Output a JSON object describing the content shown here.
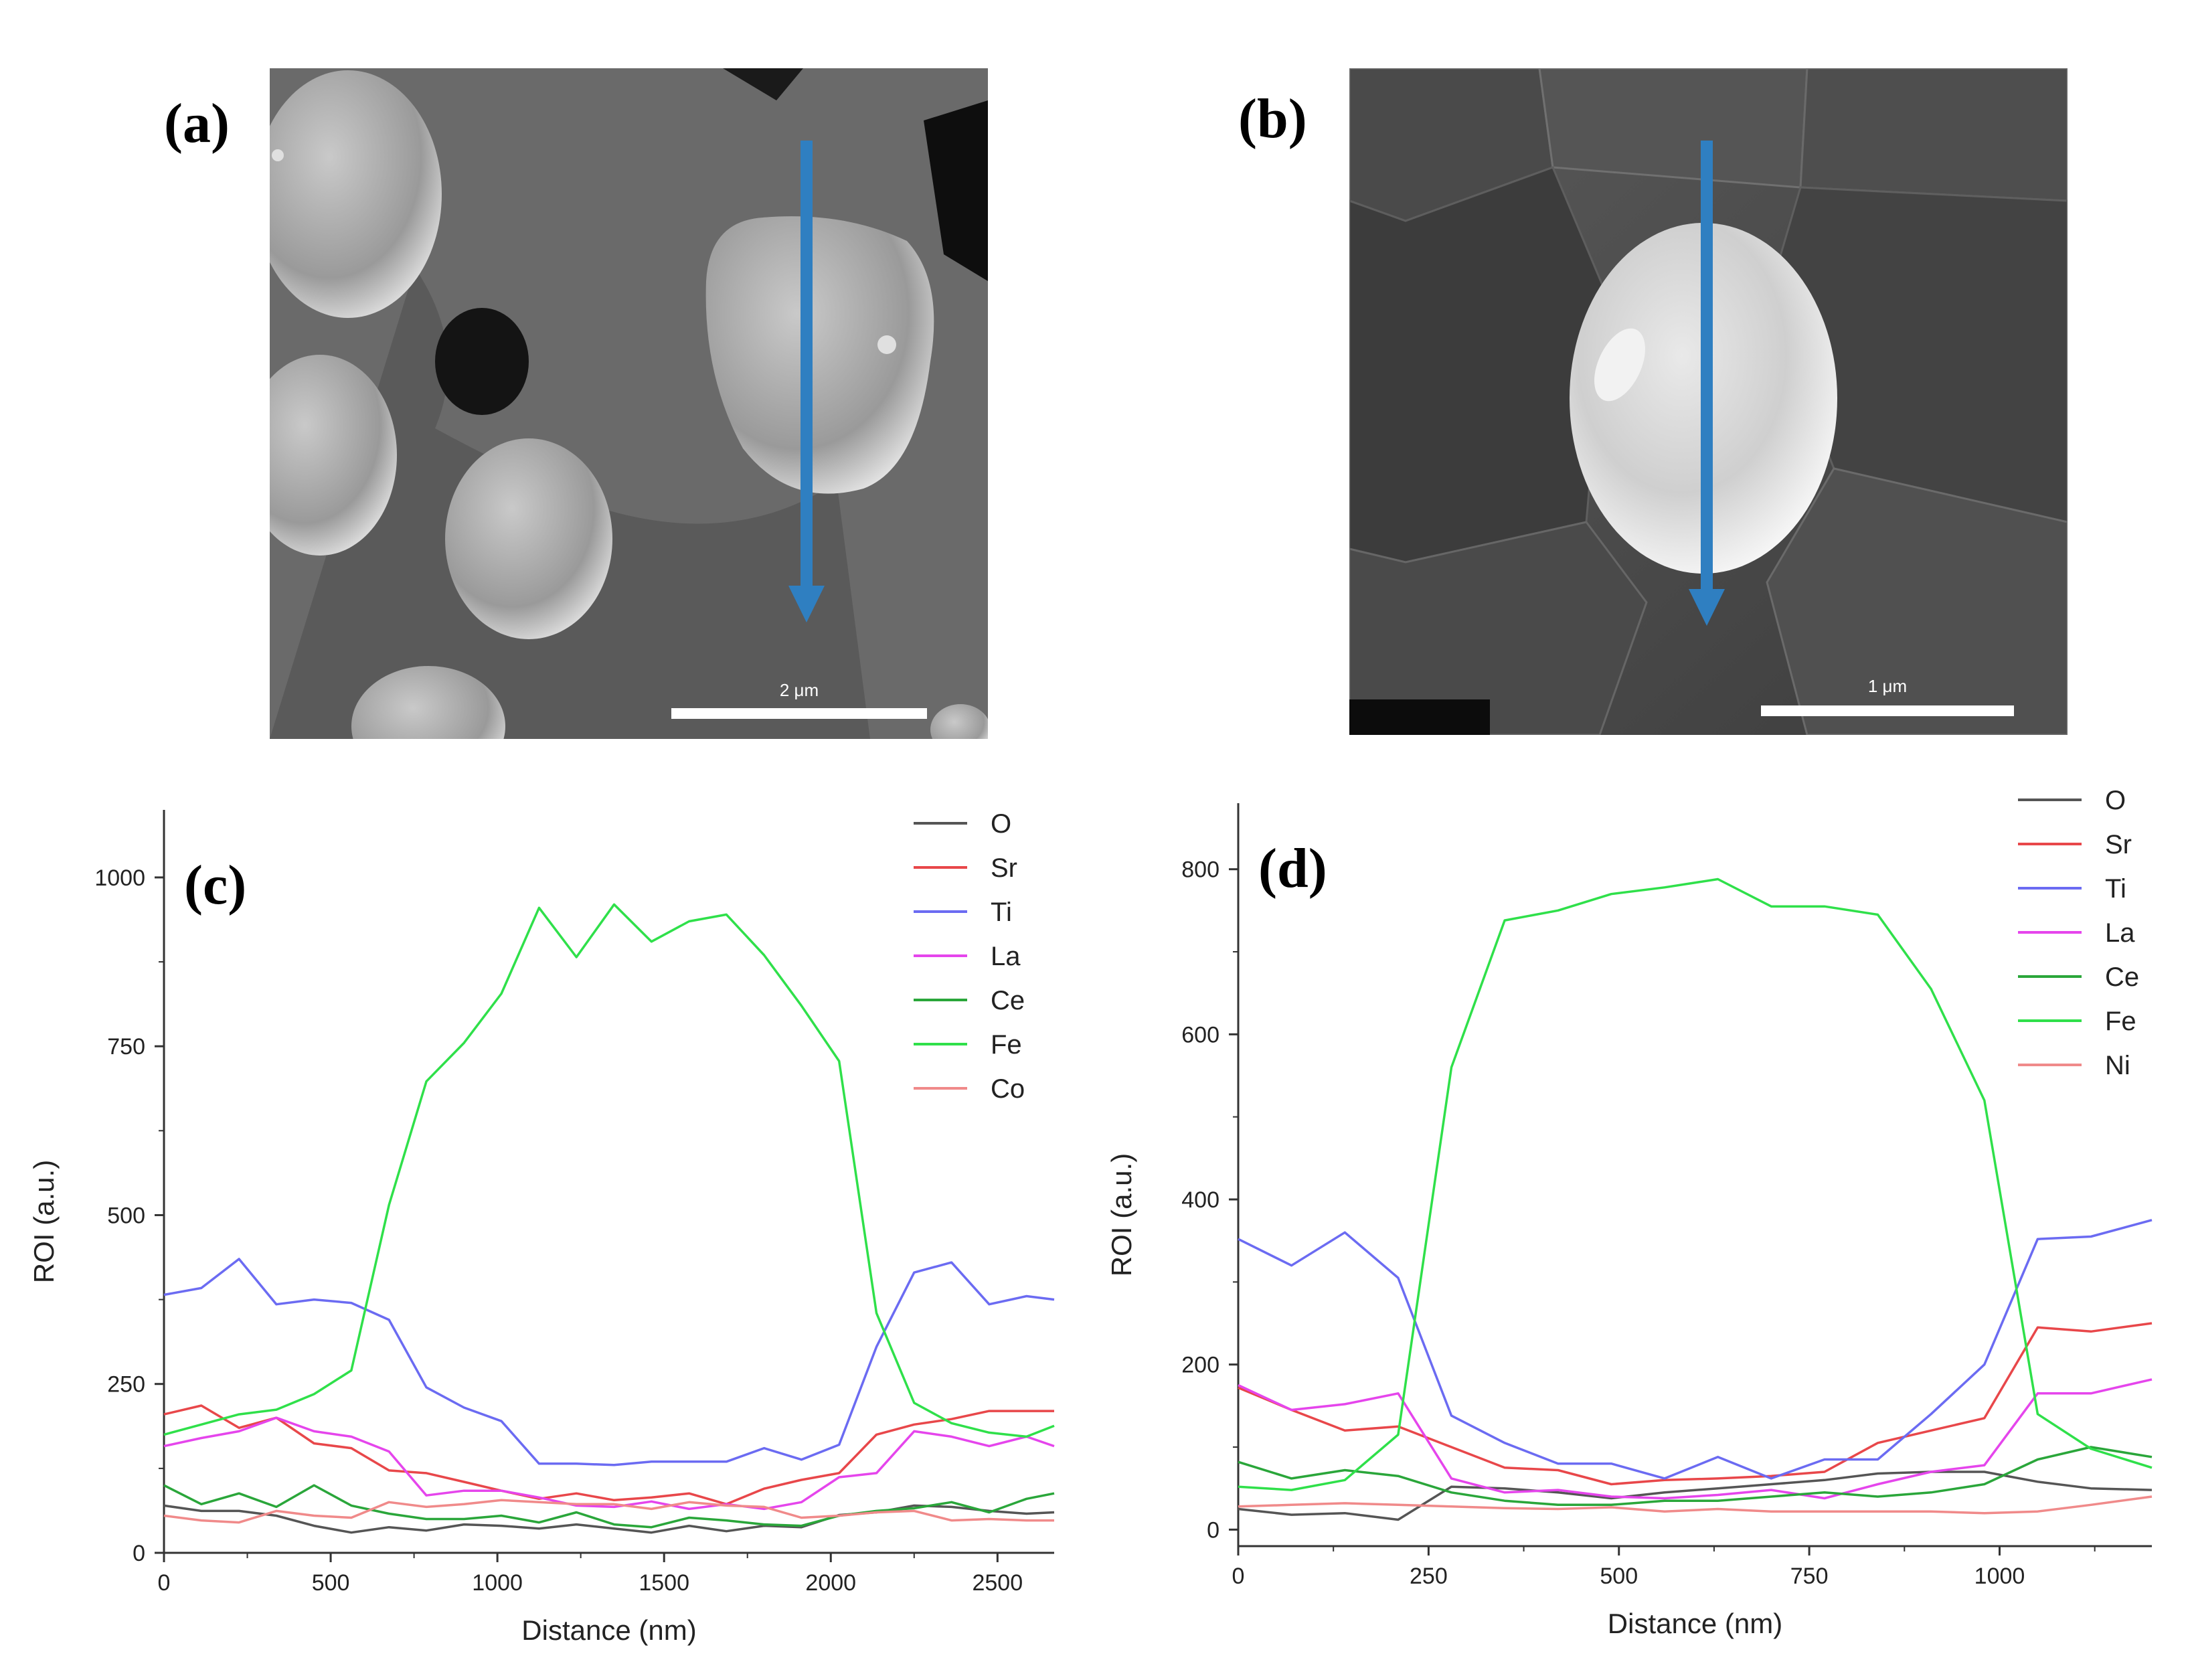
{
  "panels": {
    "a": {
      "label": "(a)",
      "scale_bar": "2 μm",
      "arrow_color": "#2f7fc1"
    },
    "b": {
      "label": "(b)",
      "scale_bar": "1 μm",
      "arrow_color": "#2f7fc1"
    },
    "c": {
      "label": "(c)"
    },
    "d": {
      "label": "(d)"
    }
  },
  "chart_data": [
    {
      "panel": "c",
      "type": "line",
      "xlabel": "Distance (nm)",
      "ylabel": "ROI (a.u.)",
      "xlim": [
        0,
        2670
      ],
      "ylim": [
        0,
        1100
      ],
      "xticks": [
        0,
        500,
        1000,
        1500,
        2000,
        2500
      ],
      "yticks": [
        0,
        250,
        500,
        750,
        1000
      ],
      "legend_position": "top-right",
      "series": [
        {
          "name": "O",
          "color": "#555555",
          "x": [
            0,
            112,
            225,
            337,
            450,
            562,
            675,
            787,
            900,
            1012,
            1125,
            1237,
            1350,
            1462,
            1575,
            1687,
            1800,
            1912,
            2025,
            2137,
            2250,
            2362,
            2475,
            2587,
            2670
          ],
          "y": [
            70,
            62,
            62,
            55,
            40,
            30,
            38,
            33,
            42,
            40,
            36,
            42,
            36,
            30,
            40,
            32,
            40,
            38,
            56,
            60,
            70,
            68,
            62,
            58,
            60
          ]
        },
        {
          "name": "Sr",
          "color": "#e8474a",
          "x": [
            0,
            112,
            225,
            337,
            450,
            562,
            675,
            787,
            900,
            1012,
            1125,
            1237,
            1350,
            1462,
            1575,
            1687,
            1800,
            1912,
            2025,
            2137,
            2250,
            2362,
            2475,
            2587,
            2670
          ],
          "y": [
            205,
            218,
            185,
            200,
            162,
            155,
            122,
            118,
            105,
            92,
            80,
            88,
            78,
            82,
            88,
            72,
            95,
            108,
            118,
            175,
            190,
            198,
            210,
            210,
            210
          ]
        },
        {
          "name": "Ti",
          "color": "#6b6bf2",
          "x": [
            0,
            112,
            225,
            337,
            450,
            562,
            675,
            787,
            900,
            1012,
            1125,
            1237,
            1350,
            1462,
            1575,
            1687,
            1800,
            1912,
            2025,
            2137,
            2250,
            2362,
            2475,
            2587,
            2670
          ],
          "y": [
            382,
            392,
            435,
            368,
            375,
            370,
            345,
            245,
            215,
            195,
            132,
            132,
            130,
            135,
            135,
            135,
            155,
            138,
            160,
            305,
            415,
            430,
            368,
            380,
            375
          ]
        },
        {
          "name": "La",
          "color": "#e545ec",
          "x": [
            0,
            112,
            225,
            337,
            450,
            562,
            675,
            787,
            900,
            1012,
            1125,
            1237,
            1350,
            1462,
            1575,
            1687,
            1800,
            1912,
            2025,
            2137,
            2250,
            2362,
            2475,
            2587,
            2670
          ],
          "y": [
            158,
            170,
            180,
            200,
            180,
            172,
            150,
            85,
            92,
            92,
            82,
            70,
            68,
            76,
            65,
            72,
            65,
            75,
            112,
            118,
            180,
            172,
            158,
            172,
            158
          ]
        },
        {
          "name": "Ce",
          "color": "#2aa63a",
          "x": [
            0,
            112,
            225,
            337,
            450,
            562,
            675,
            787,
            900,
            1012,
            1125,
            1237,
            1350,
            1462,
            1575,
            1687,
            1800,
            1912,
            2025,
            2137,
            2250,
            2362,
            2475,
            2587,
            2670
          ],
          "y": [
            100,
            72,
            88,
            68,
            100,
            70,
            58,
            50,
            50,
            55,
            45,
            60,
            42,
            38,
            52,
            48,
            42,
            40,
            55,
            62,
            66,
            75,
            60,
            80,
            88
          ]
        },
        {
          "name": "Fe",
          "color": "#2fe04a",
          "x": [
            0,
            112,
            225,
            337,
            450,
            562,
            675,
            787,
            900,
            1012,
            1125,
            1237,
            1350,
            1462,
            1575,
            1687,
            1800,
            1912,
            2025,
            2137,
            2250,
            2362,
            2475,
            2587,
            2670
          ],
          "y": [
            175,
            190,
            205,
            212,
            235,
            270,
            515,
            698,
            755,
            828,
            955,
            882,
            960,
            905,
            935,
            945,
            885,
            810,
            728,
            355,
            222,
            192,
            178,
            172,
            188
          ]
        },
        {
          "name": "Co",
          "color": "#f08a8a",
          "x": [
            0,
            112,
            225,
            337,
            450,
            562,
            675,
            787,
            900,
            1012,
            1125,
            1237,
            1350,
            1462,
            1575,
            1687,
            1800,
            1912,
            2025,
            2137,
            2250,
            2362,
            2475,
            2587,
            2670
          ],
          "y": [
            55,
            48,
            45,
            62,
            55,
            52,
            75,
            68,
            72,
            78,
            75,
            72,
            72,
            65,
            75,
            70,
            68,
            52,
            55,
            60,
            62,
            48,
            50,
            48,
            48
          ]
        }
      ]
    },
    {
      "panel": "d",
      "type": "line",
      "xlabel": "Distance (nm)",
      "ylabel": "ROI (a.u.)",
      "xlim": [
        0,
        1200
      ],
      "ylim": [
        -20,
        880
      ],
      "xticks": [
        0,
        250,
        500,
        750,
        1000
      ],
      "yticks": [
        0,
        200,
        400,
        600,
        800
      ],
      "legend_position": "top-right",
      "series": [
        {
          "name": "O",
          "color": "#555555",
          "x": [
            0,
            70,
            140,
            210,
            280,
            350,
            420,
            490,
            560,
            630,
            700,
            770,
            840,
            910,
            980,
            1050,
            1120,
            1200
          ],
          "y": [
            25,
            18,
            20,
            12,
            52,
            50,
            45,
            38,
            45,
            50,
            55,
            60,
            68,
            70,
            70,
            58,
            50,
            48
          ]
        },
        {
          "name": "Sr",
          "color": "#e8474a",
          "x": [
            0,
            70,
            140,
            210,
            280,
            350,
            420,
            490,
            560,
            630,
            700,
            770,
            840,
            910,
            980,
            1050,
            1120,
            1200
          ],
          "y": [
            172,
            145,
            120,
            125,
            100,
            75,
            72,
            55,
            60,
            62,
            65,
            70,
            105,
            120,
            135,
            245,
            240,
            250
          ]
        },
        {
          "name": "Ti",
          "color": "#6b6bf2",
          "x": [
            0,
            70,
            140,
            210,
            280,
            350,
            420,
            490,
            560,
            630,
            700,
            770,
            840,
            910,
            980,
            1050,
            1120,
            1200
          ],
          "y": [
            352,
            320,
            360,
            305,
            138,
            105,
            80,
            80,
            62,
            88,
            62,
            85,
            85,
            140,
            200,
            352,
            355,
            375
          ]
        },
        {
          "name": "La",
          "color": "#e545ec",
          "x": [
            0,
            70,
            140,
            210,
            280,
            350,
            420,
            490,
            560,
            630,
            700,
            770,
            840,
            910,
            980,
            1050,
            1120,
            1200
          ],
          "y": [
            175,
            145,
            152,
            165,
            62,
            45,
            48,
            40,
            38,
            42,
            48,
            38,
            55,
            70,
            78,
            165,
            165,
            182
          ]
        },
        {
          "name": "Ce",
          "color": "#2aa63a",
          "x": [
            0,
            70,
            140,
            210,
            280,
            350,
            420,
            490,
            560,
            630,
            700,
            770,
            840,
            910,
            980,
            1050,
            1120,
            1200
          ],
          "y": [
            82,
            62,
            72,
            65,
            45,
            35,
            30,
            30,
            35,
            35,
            40,
            45,
            40,
            45,
            55,
            85,
            100,
            88
          ]
        },
        {
          "name": "Fe",
          "color": "#2fe04a",
          "x": [
            0,
            70,
            140,
            210,
            280,
            350,
            420,
            490,
            560,
            630,
            700,
            770,
            840,
            910,
            980,
            1050,
            1120,
            1200
          ],
          "y": [
            52,
            48,
            60,
            115,
            560,
            738,
            750,
            770,
            778,
            788,
            755,
            755,
            745,
            655,
            520,
            140,
            98,
            75
          ]
        },
        {
          "name": "Ni",
          "color": "#f08a8a",
          "x": [
            0,
            70,
            140,
            210,
            280,
            350,
            420,
            490,
            560,
            630,
            700,
            770,
            840,
            910,
            980,
            1050,
            1120,
            1200
          ],
          "y": [
            28,
            30,
            32,
            30,
            28,
            26,
            25,
            27,
            22,
            25,
            22,
            22,
            22,
            22,
            20,
            22,
            30,
            40
          ]
        }
      ]
    }
  ]
}
